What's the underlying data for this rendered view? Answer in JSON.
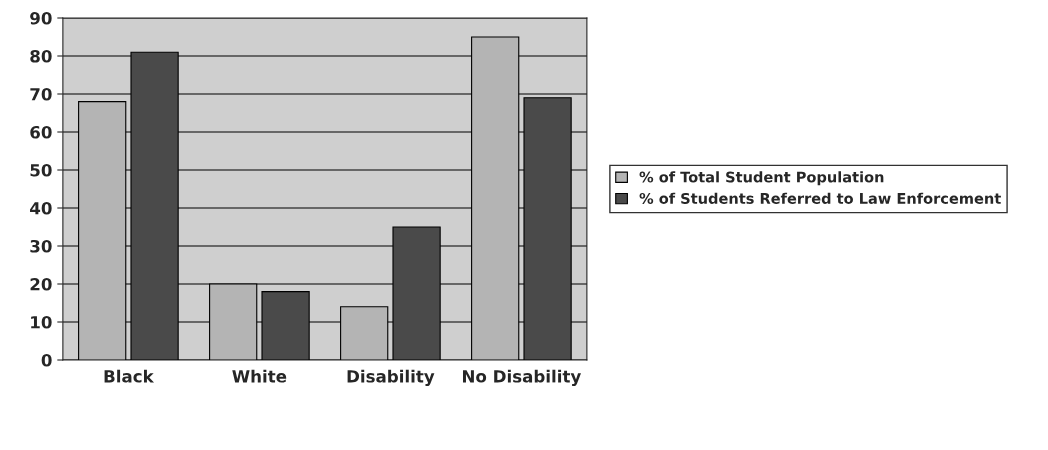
{
  "chart_data": {
    "type": "bar",
    "categories": [
      "Black",
      "White",
      "Disability",
      "No Disability"
    ],
    "series": [
      {
        "name": "% of Total Student Population",
        "color": "#b4b4b4",
        "values": [
          68,
          20,
          14,
          85
        ]
      },
      {
        "name": "% of Students Referred to Law Enforcement",
        "color": "#4a4a4a",
        "values": [
          81,
          18,
          35,
          69
        ]
      }
    ],
    "ylim": [
      0,
      90
    ],
    "yticks": [
      0,
      10,
      20,
      30,
      40,
      50,
      60,
      70,
      80,
      90
    ],
    "grid": "y",
    "legend": "right"
  }
}
